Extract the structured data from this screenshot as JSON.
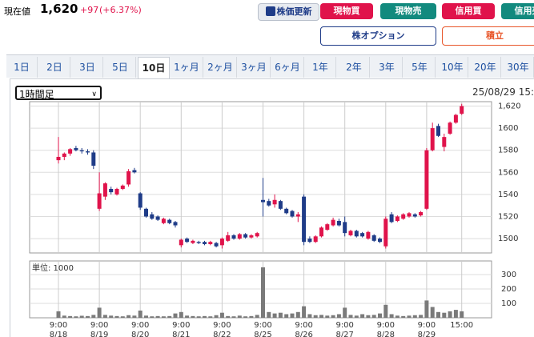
{
  "header": {
    "label": "現在値",
    "price": "1,620",
    "change": "+97",
    "change_pct": "(+6.37%)",
    "refresh": "株価更新",
    "buttons": [
      "現物買",
      "現物売",
      "信用買",
      "信用売"
    ],
    "buttons2": [
      "株オプション",
      "積立"
    ]
  },
  "tabs": [
    "1日",
    "2日",
    "3日",
    "5日",
    "10日",
    "1ヶ月",
    "2ヶ月",
    "3ヶ月",
    "6ヶ月",
    "1年",
    "2年",
    "3年",
    "5年",
    "10年",
    "20年",
    "30年"
  ],
  "selected_tab": 4,
  "interval": "1時間足",
  "timestamp": "25/08/29 15:",
  "chart_data": {
    "type": "candlestick",
    "up_color": "#e0134b",
    "down_color": "#1f3c88",
    "volume_color": "#7a7a7a",
    "grid": true,
    "open": [
      1571,
      1574,
      1577,
      1582,
      1580,
      1579,
      1578,
      1527,
      1538,
      1545,
      1540,
      1545,
      1549,
      1562,
      1541,
      1527,
      1522,
      1520,
      1514,
      1517,
      1515,
      1494,
      1500,
      1496,
      1497,
      1497,
      1495,
      1496,
      1494,
      1498,
      1503,
      1500,
      1504,
      1501,
      1502,
      1535,
      1534,
      1531,
      1534,
      1527,
      1525,
      1520,
      1538,
      1500,
      1497,
      1502,
      1508,
      1512,
      1516,
      1515,
      1503,
      1507,
      1505,
      1500,
      1503,
      1500,
      1493,
      1522,
      1516,
      1518,
      1520,
      1522,
      1521,
      1527,
      1580,
      1602,
      1583,
      1595,
      1605,
      1613
    ],
    "high": [
      1592,
      1578,
      1582,
      1584,
      1582,
      1581,
      1580,
      1560,
      1551,
      1547,
      1546,
      1549,
      1563,
      1564,
      1542,
      1528,
      1524,
      1521,
      1519,
      1518,
      1516,
      1500,
      1501,
      1499,
      1498,
      1498,
      1498,
      1497,
      1501,
      1506,
      1504,
      1505,
      1505,
      1504,
      1506,
      1555,
      1536,
      1540,
      1535,
      1528,
      1526,
      1524,
      1540,
      1502,
      1503,
      1511,
      1514,
      1519,
      1518,
      1520,
      1508,
      1508,
      1506,
      1507,
      1504,
      1501,
      1520,
      1524,
      1521,
      1523,
      1524,
      1523,
      1525,
      1582,
      1605,
      1604,
      1595,
      1606,
      1613,
      1622
    ],
    "low": [
      1568,
      1571,
      1575,
      1579,
      1577,
      1576,
      1563,
      1525,
      1535,
      1540,
      1539,
      1544,
      1547,
      1559,
      1526,
      1519,
      1517,
      1516,
      1513,
      1513,
      1510,
      1492,
      1496,
      1495,
      1495,
      1494,
      1494,
      1492,
      1491,
      1497,
      1499,
      1499,
      1500,
      1500,
      1501,
      1520,
      1529,
      1528,
      1526,
      1522,
      1519,
      1515,
      1494,
      1496,
      1496,
      1501,
      1507,
      1511,
      1511,
      1502,
      1502,
      1501,
      1501,
      1499,
      1497,
      1496,
      1491,
      1514,
      1515,
      1517,
      1519,
      1519,
      1520,
      1526,
      1579,
      1592,
      1579,
      1594,
      1604,
      1612
    ],
    "close": [
      1574,
      1577,
      1581,
      1580,
      1579,
      1578,
      1566,
      1541,
      1550,
      1542,
      1545,
      1548,
      1561,
      1560,
      1528,
      1520,
      1518,
      1517,
      1518,
      1514,
      1512,
      1499,
      1497,
      1498,
      1496,
      1495,
      1497,
      1493,
      1500,
      1503,
      1500,
      1504,
      1501,
      1503,
      1505,
      1533,
      1530,
      1535,
      1527,
      1523,
      1520,
      1522,
      1497,
      1497,
      1502,
      1510,
      1513,
      1517,
      1512,
      1505,
      1507,
      1502,
      1502,
      1506,
      1498,
      1497,
      1518,
      1515,
      1520,
      1522,
      1523,
      1520,
      1524,
      1580,
      1600,
      1593,
      1592,
      1605,
      1612,
      1620
    ],
    "volume": [
      45,
      15,
      12,
      10,
      14,
      12,
      20,
      70,
      20,
      15,
      12,
      10,
      18,
      15,
      50,
      15,
      10,
      12,
      10,
      12,
      30,
      40,
      15,
      12,
      10,
      12,
      10,
      18,
      35,
      12,
      10,
      15,
      10,
      12,
      20,
      350,
      40,
      30,
      35,
      25,
      30,
      40,
      80,
      25,
      18,
      20,
      15,
      18,
      25,
      70,
      20,
      15,
      25,
      18,
      20,
      30,
      90,
      25,
      15,
      12,
      15,
      18,
      20,
      120,
      75,
      40,
      35,
      45,
      55,
      45
    ],
    "ylim": [
      1487,
      1624
    ],
    "yticks": [
      1500,
      1520,
      1540,
      1560,
      1580,
      1600,
      {
        "value": 1620,
        "label": "1,620"
      }
    ],
    "volume_ylim": [
      0,
      372
    ],
    "volume_yticks": [
      100,
      200,
      300
    ],
    "volume_unit": "単位: 1000",
    "xticks": [
      {
        "index": 0,
        "time": "9:00",
        "date": "8/18"
      },
      {
        "index": 7,
        "time": "9:00",
        "date": "8/19"
      },
      {
        "index": 14,
        "time": "9:00",
        "date": "8/20"
      },
      {
        "index": 21,
        "time": "9:00",
        "date": "8/21"
      },
      {
        "index": 28,
        "time": "9:00",
        "date": "8/22"
      },
      {
        "index": 35,
        "time": "9:00",
        "date": "8/25"
      },
      {
        "index": 42,
        "time": "9:00",
        "date": "8/26"
      },
      {
        "index": 49,
        "time": "9:00",
        "date": "8/27"
      },
      {
        "index": 56,
        "time": "9:00",
        "date": "8/28"
      },
      {
        "index": 63,
        "time": "9:00",
        "date": "8/29"
      },
      {
        "index": 69,
        "time": "15:00"
      }
    ]
  }
}
